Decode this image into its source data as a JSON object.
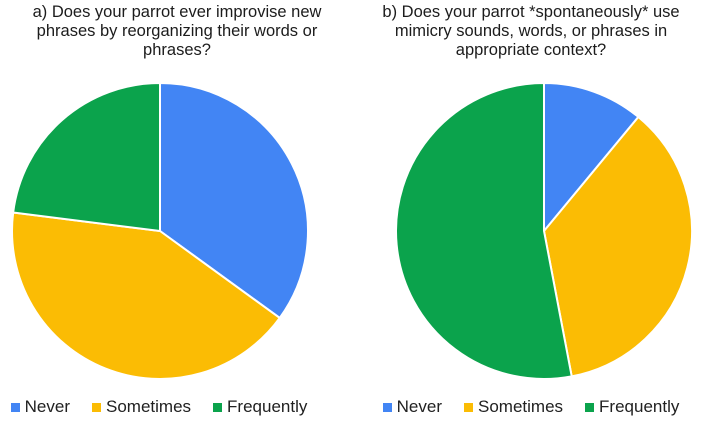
{
  "palette": {
    "never_blue": "#4285F4",
    "sometimes_yellow": "#FBBC04",
    "frequently_green": "#0BA34C",
    "slice_separator": "#FFFFFF",
    "background": "#FFFFFF",
    "text": "#1C1C1C"
  },
  "chart_data": [
    {
      "type": "pie",
      "title": "a) Does your parrot ever improvise new phrases by reorganizing their words or phrases?",
      "title_lines": [
        "a) Does your parrot ever improvise new",
        "phrases by reorganizing their words or",
        "phrases?"
      ],
      "categories": [
        "Never",
        "Sometimes",
        "Frequently"
      ],
      "values": [
        35,
        42,
        23
      ],
      "unit": "percent (estimated from slice angles)",
      "colors": [
        "#4285F4",
        "#FBBC04",
        "#0BA34C"
      ],
      "start_angle_deg": 0,
      "direction": "clockwise",
      "legend_position": "bottom",
      "data_labels": false
    },
    {
      "type": "pie",
      "title": "b) Does your parrot *spontaneously* use mimicry sounds, words, or phrases in appropriate context?",
      "title_lines": [
        "b) Does your parrot *spontaneously* use",
        "mimicry sounds, words, or phrases in",
        "appropriate context?"
      ],
      "categories": [
        "Never",
        "Sometimes",
        "Frequently"
      ],
      "values": [
        11,
        36,
        53
      ],
      "unit": "percent (estimated from slice angles)",
      "colors": [
        "#4285F4",
        "#FBBC04",
        "#0BA34C"
      ],
      "start_angle_deg": 0,
      "direction": "clockwise",
      "legend_position": "bottom",
      "data_labels": false
    }
  ]
}
